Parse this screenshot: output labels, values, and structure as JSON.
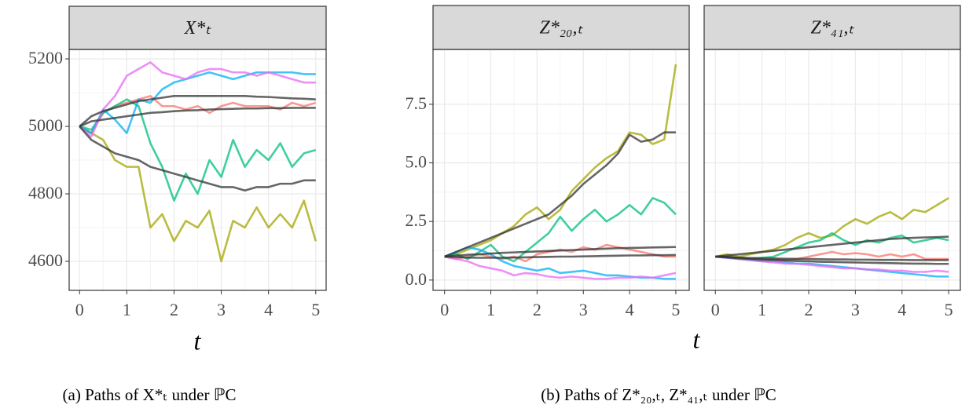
{
  "chart_data": [
    {
      "type": "line",
      "title": "X*ₜ",
      "x_label": "t",
      "y_tick_labels": true,
      "x": [
        0,
        0.25,
        0.5,
        0.75,
        1,
        1.25,
        1.5,
        1.75,
        2,
        2.25,
        2.5,
        2.75,
        3,
        3.25,
        3.5,
        3.75,
        4,
        4.25,
        4.5,
        4.75,
        5
      ],
      "xlim": [
        -0.22,
        5.22
      ],
      "xticks": [
        0,
        1,
        2,
        3,
        4,
        5
      ],
      "ylim": [
        4514,
        5228
      ],
      "yticks": [
        4600,
        4800,
        5000,
        5200
      ],
      "grid": true,
      "series": [
        {
          "color": "#f8766d",
          "values": [
            5000,
            4980,
            5040,
            5060,
            5070,
            5080,
            5090,
            5060,
            5060,
            5050,
            5060,
            5040,
            5060,
            5070,
            5060,
            5060,
            5060,
            5050,
            5070,
            5060,
            5070
          ]
        },
        {
          "color": "#a3a500",
          "values": [
            5000,
            4980,
            4960,
            4900,
            4880,
            4880,
            4700,
            4740,
            4660,
            4720,
            4700,
            4750,
            4600,
            4720,
            4700,
            4760,
            4700,
            4740,
            4700,
            4780,
            4660
          ]
        },
        {
          "color": "#00bf7d",
          "values": [
            5000,
            4990,
            5040,
            5060,
            5080,
            5060,
            4950,
            4880,
            4780,
            4860,
            4800,
            4900,
            4850,
            4960,
            4880,
            4930,
            4900,
            4950,
            4880,
            4920,
            4930
          ]
        },
        {
          "color": "#00b0f6",
          "values": [
            5000,
            4980,
            5050,
            5020,
            4980,
            5080,
            5070,
            5110,
            5130,
            5140,
            5150,
            5160,
            5150,
            5140,
            5150,
            5160,
            5160,
            5160,
            5160,
            5155,
            5155
          ]
        },
        {
          "color": "#e76bf3",
          "values": [
            5000,
            4970,
            5050,
            5090,
            5150,
            5170,
            5190,
            5160,
            5150,
            5140,
            5160,
            5170,
            5170,
            5160,
            5160,
            5150,
            5160,
            5150,
            5140,
            5130,
            5130
          ]
        },
        {
          "color": "#333333",
          "values": [
            5000,
            5030,
            5045,
            5055,
            5065,
            5075,
            5080,
            5085,
            5090,
            5090,
            5090,
            5090,
            5090,
            5090,
            5090,
            5088,
            5087,
            5085,
            5083,
            5082,
            5080
          ]
        },
        {
          "color": "#333333",
          "values": [
            5000,
            5015,
            5020,
            5025,
            5030,
            5035,
            5040,
            5042,
            5045,
            5047,
            5048,
            5050,
            5051,
            5052,
            5053,
            5053,
            5054,
            5054,
            5055,
            5055,
            5055
          ]
        },
        {
          "color": "#333333",
          "values": [
            5000,
            4960,
            4940,
            4920,
            4910,
            4900,
            4880,
            4870,
            4860,
            4850,
            4840,
            4830,
            4820,
            4820,
            4810,
            4820,
            4820,
            4830,
            4830,
            4840,
            4840
          ]
        }
      ]
    },
    {
      "type": "line",
      "title": "Z*₂₀,ₜ",
      "x_label": "t",
      "y_tick_labels": true,
      "x": [
        0,
        0.25,
        0.5,
        0.75,
        1,
        1.25,
        1.5,
        1.75,
        2,
        2.25,
        2.5,
        2.75,
        3,
        3.25,
        3.5,
        3.75,
        4,
        4.25,
        4.5,
        4.75,
        5
      ],
      "xlim": [
        -0.25,
        5.29
      ],
      "xticks": [
        0,
        1,
        2,
        3,
        4,
        5
      ],
      "ylim": [
        -0.44,
        9.84
      ],
      "yticks": [
        {
          "value": 0,
          "label": "0.0"
        },
        2.5,
        {
          "value": 5,
          "label": "5.0"
        },
        7.5
      ],
      "grid": true,
      "series": [
        {
          "color": "#f8766d",
          "values": [
            1,
            0.9,
            1.0,
            1.1,
            1.0,
            0.9,
            1.0,
            0.8,
            1.1,
            1.2,
            1.3,
            1.2,
            1.4,
            1.3,
            1.5,
            1.4,
            1.3,
            1.2,
            1.1,
            1.0,
            1.0
          ]
        },
        {
          "color": "#a3a500",
          "values": [
            1,
            1.1,
            1.3,
            1.5,
            1.7,
            2.0,
            2.3,
            2.8,
            3.1,
            2.6,
            3.0,
            3.8,
            4.3,
            4.8,
            5.2,
            5.5,
            6.3,
            6.2,
            5.8,
            6.0,
            9.2
          ]
        },
        {
          "color": "#00bf7d",
          "values": [
            1,
            1.1,
            0.9,
            1.2,
            1.5,
            1.0,
            0.8,
            1.2,
            1.6,
            2.0,
            2.7,
            2.1,
            2.6,
            3.0,
            2.5,
            2.8,
            3.2,
            2.8,
            3.5,
            3.3,
            2.8
          ]
        },
        {
          "color": "#00b0f6",
          "values": [
            1,
            1.2,
            1.4,
            1.3,
            1.1,
            0.8,
            0.6,
            0.5,
            0.4,
            0.5,
            0.3,
            0.35,
            0.4,
            0.3,
            0.2,
            0.2,
            0.15,
            0.1,
            0.1,
            0.05,
            0.05
          ]
        },
        {
          "color": "#e76bf3",
          "values": [
            1,
            0.9,
            0.8,
            0.6,
            0.5,
            0.4,
            0.2,
            0.3,
            0.25,
            0.15,
            0.1,
            0.15,
            0.1,
            0.05,
            0.05,
            0.1,
            0.1,
            0.15,
            0.1,
            0.2,
            0.3
          ]
        },
        {
          "color": "#333333",
          "values": [
            1,
            1.2,
            1.4,
            1.6,
            1.8,
            2.0,
            2.2,
            2.4,
            2.6,
            2.8,
            3.2,
            3.6,
            4.1,
            4.5,
            4.9,
            5.4,
            6.2,
            5.9,
            6.0,
            6.3,
            6.3
          ]
        },
        {
          "color": "#333333",
          "values": [
            1,
            1.04,
            1.08,
            1.1,
            1.13,
            1.16,
            1.18,
            1.2,
            1.22,
            1.24,
            1.26,
            1.28,
            1.3,
            1.32,
            1.34,
            1.36,
            1.37,
            1.38,
            1.39,
            1.4,
            1.41
          ]
        },
        {
          "color": "#333333",
          "values": [
            1,
            0.98,
            0.96,
            0.95,
            0.95,
            0.95,
            0.96,
            0.97,
            0.98,
            0.99,
            1.0,
            1.0,
            1.01,
            1.02,
            1.03,
            1.04,
            1.05,
            1.05,
            1.06,
            1.06,
            1.07
          ]
        }
      ]
    },
    {
      "type": "line",
      "title": "Z*₄₁,ₜ",
      "y_tick_labels": false,
      "x": [
        0,
        0.25,
        0.5,
        0.75,
        1,
        1.25,
        1.5,
        1.75,
        2,
        2.25,
        2.5,
        2.75,
        3,
        3.25,
        3.5,
        3.75,
        4,
        4.25,
        4.5,
        4.75,
        5
      ],
      "xlim": [
        -0.24,
        5.25
      ],
      "xticks": [
        0,
        1,
        2,
        3,
        4,
        5
      ],
      "ylim": [
        -0.44,
        9.84
      ],
      "yticks": [
        {
          "value": 0,
          "label": "0.0"
        },
        2.5,
        {
          "value": 5,
          "label": "5.0"
        },
        7.5
      ],
      "grid": true,
      "series": [
        {
          "color": "#f8766d",
          "values": [
            1,
            0.95,
            0.9,
            0.9,
            0.85,
            0.9,
            0.85,
            0.9,
            1.0,
            1.1,
            1.2,
            1.1,
            1.15,
            1.1,
            1.0,
            1.1,
            1.0,
            1.1,
            0.9,
            0.9,
            0.9
          ]
        },
        {
          "color": "#a3a500",
          "values": [
            1,
            1.1,
            1.0,
            1.1,
            1.2,
            1.3,
            1.5,
            1.8,
            2.0,
            1.8,
            1.9,
            2.3,
            2.6,
            2.4,
            2.7,
            2.9,
            2.6,
            3.0,
            2.9,
            3.2,
            3.5
          ]
        },
        {
          "color": "#00bf7d",
          "values": [
            1,
            1.0,
            0.95,
            0.9,
            0.95,
            1.0,
            1.2,
            1.4,
            1.6,
            1.7,
            2.0,
            1.7,
            1.5,
            1.7,
            1.6,
            1.8,
            1.9,
            1.6,
            1.7,
            1.8,
            1.7
          ]
        },
        {
          "color": "#00b0f6",
          "values": [
            1,
            0.95,
            0.9,
            0.85,
            0.8,
            0.8,
            0.75,
            0.7,
            0.7,
            0.65,
            0.6,
            0.55,
            0.5,
            0.45,
            0.4,
            0.35,
            0.3,
            0.25,
            0.2,
            0.15,
            0.15
          ]
        },
        {
          "color": "#e76bf3",
          "values": [
            1,
            0.95,
            0.9,
            0.85,
            0.8,
            0.75,
            0.7,
            0.7,
            0.65,
            0.6,
            0.55,
            0.5,
            0.5,
            0.45,
            0.45,
            0.4,
            0.4,
            0.35,
            0.35,
            0.4,
            0.35
          ]
        },
        {
          "color": "#333333",
          "values": [
            1,
            1.05,
            1.1,
            1.15,
            1.2,
            1.25,
            1.3,
            1.35,
            1.4,
            1.45,
            1.5,
            1.55,
            1.6,
            1.65,
            1.7,
            1.75,
            1.78,
            1.8,
            1.82,
            1.83,
            1.85
          ]
        },
        {
          "color": "#333333",
          "values": [
            1,
            0.98,
            0.96,
            0.94,
            0.93,
            0.92,
            0.91,
            0.9,
            0.9,
            0.89,
            0.88,
            0.88,
            0.87,
            0.87,
            0.86,
            0.86,
            0.86,
            0.85,
            0.85,
            0.85,
            0.85
          ]
        },
        {
          "color": "#333333",
          "values": [
            1,
            0.97,
            0.93,
            0.9,
            0.87,
            0.85,
            0.83,
            0.81,
            0.8,
            0.78,
            0.77,
            0.76,
            0.75,
            0.74,
            0.73,
            0.72,
            0.71,
            0.7,
            0.7,
            0.69,
            0.69
          ]
        }
      ]
    }
  ],
  "captions": [
    "(a) Paths of X*ₜ under ℙC",
    "(b) Paths of Z*₂₀,ₜ, Z*₄₁,ₜ under ℙC"
  ]
}
